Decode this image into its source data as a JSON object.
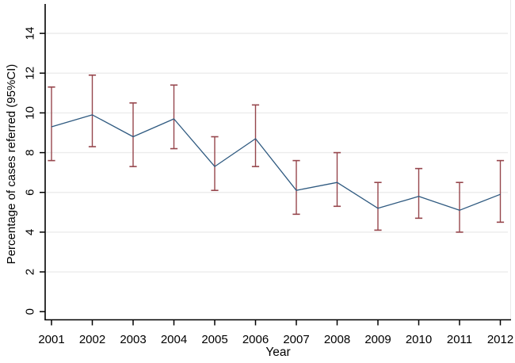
{
  "figure": {
    "background": "#ffffff"
  },
  "chart_data": {
    "type": "line",
    "title": "",
    "xlabel": "Year",
    "ylabel": "Percentage of cases referred (95%CI)",
    "x": [
      2001,
      2002,
      2003,
      2004,
      2005,
      2006,
      2007,
      2008,
      2009,
      2010,
      2011,
      2012
    ],
    "series": [
      {
        "name": "Percentage of cases referred",
        "values": [
          9.3,
          9.9,
          8.8,
          9.7,
          7.3,
          8.7,
          6.1,
          6.5,
          5.2,
          5.8,
          5.1,
          5.9
        ]
      }
    ],
    "ci_low": [
      7.6,
      8.3,
      7.3,
      8.2,
      6.1,
      7.3,
      4.9,
      5.3,
      4.1,
      4.7,
      4.0,
      4.5
    ],
    "ci_high": [
      11.3,
      11.9,
      10.5,
      11.4,
      8.8,
      10.4,
      7.6,
      8.0,
      6.5,
      7.2,
      6.5,
      7.6
    ],
    "ylim": [
      0,
      15.5
    ],
    "yticks": [
      0,
      2,
      4,
      6,
      8,
      10,
      12,
      14
    ],
    "grid": true,
    "legend": "none",
    "error_bars": "95% confidence intervals, capped",
    "colors": {
      "line": "#2f5a80",
      "ci": "#96464c",
      "grid": "#ececec",
      "plot_border": "#e9e9e9",
      "axis": "#000000",
      "text": "#000000"
    }
  }
}
